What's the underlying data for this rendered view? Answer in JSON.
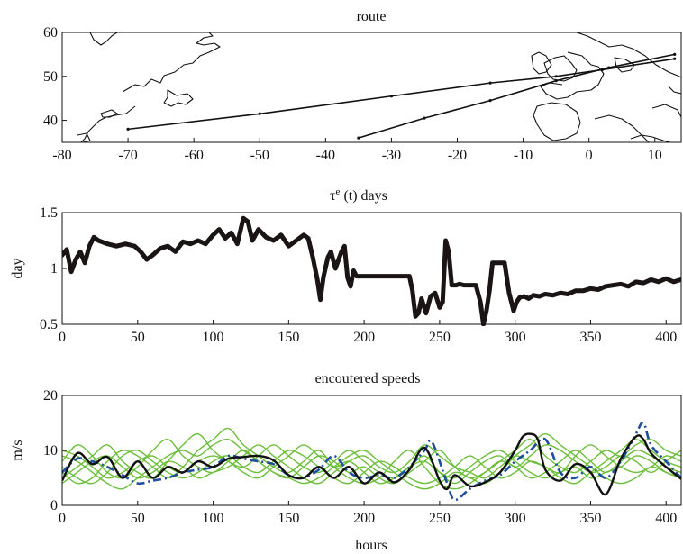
{
  "chart_data": [
    {
      "type": "line",
      "title": "route",
      "xlabel": "",
      "ylabel": "",
      "xlim": [
        -80,
        14
      ],
      "ylim": [
        35,
        60
      ],
      "xticks": [
        -80,
        -70,
        -60,
        -50,
        -40,
        -30,
        -20,
        -10,
        0,
        10
      ],
      "yticks": [
        40,
        50,
        60
      ],
      "grid": false,
      "series": [
        {
          "values": [
            [
              -70,
              38.0
            ],
            [
              -50,
              41.5
            ],
            [
              -30,
              45.5
            ],
            [
              -15,
              48.5
            ],
            [
              -5,
              50.0
            ],
            [
              2,
              51.5
            ],
            [
              13,
              54.0
            ]
          ]
        },
        {
          "values": [
            [
              -35,
              36.0
            ],
            [
              -25,
              40.5
            ],
            [
              -15,
              44.5
            ],
            [
              -5,
              49.0
            ],
            [
              3,
              52.0
            ],
            [
              13,
              55.0
            ]
          ]
        }
      ]
    },
    {
      "type": "line",
      "title": "τe (t) days",
      "title_base": "τ",
      "title_sup": "e",
      "title_rest": " (t) days",
      "xlabel": "",
      "ylabel": "day",
      "xlim": [
        0,
        410
      ],
      "ylim": [
        0.5,
        1.5
      ],
      "xticks": [
        0,
        50,
        100,
        150,
        200,
        250,
        300,
        350,
        400
      ],
      "yticks": [
        0.5,
        1,
        1.5
      ],
      "grid": false,
      "series": [
        {
          "x": [
            0,
            3,
            6,
            9,
            12,
            15,
            18,
            21,
            24,
            30,
            36,
            42,
            48,
            52,
            56,
            60,
            65,
            70,
            75,
            80,
            85,
            90,
            95,
            100,
            104,
            108,
            112,
            116,
            120,
            123,
            126,
            130,
            135,
            140,
            145,
            150,
            155,
            160,
            163,
            166,
            169,
            171,
            173,
            176,
            178,
            181,
            185,
            187,
            189,
            191,
            193,
            195,
            200,
            210,
            220,
            230,
            232,
            234,
            236,
            238,
            241,
            244,
            247,
            250,
            252,
            254,
            256,
            258,
            261,
            263,
            266,
            270,
            274,
            277,
            279,
            281,
            283,
            285,
            287,
            289,
            291,
            293,
            296,
            299,
            301,
            303,
            306,
            309,
            312,
            316,
            320,
            325,
            330,
            335,
            340,
            345,
            350,
            355,
            360,
            365,
            370,
            375,
            380,
            385,
            390,
            395,
            400,
            405,
            410
          ],
          "values": [
            1.12,
            1.17,
            0.97,
            1.08,
            1.15,
            1.05,
            1.2,
            1.28,
            1.25,
            1.22,
            1.2,
            1.22,
            1.2,
            1.15,
            1.08,
            1.12,
            1.18,
            1.2,
            1.15,
            1.24,
            1.22,
            1.25,
            1.22,
            1.3,
            1.35,
            1.27,
            1.32,
            1.22,
            1.45,
            1.42,
            1.25,
            1.35,
            1.28,
            1.25,
            1.3,
            1.2,
            1.25,
            1.3,
            1.27,
            1.1,
            0.9,
            0.72,
            0.92,
            1.1,
            1.15,
            1.0,
            1.15,
            1.2,
            0.92,
            0.84,
            0.98,
            0.93,
            0.93,
            0.93,
            0.93,
            0.93,
            0.8,
            0.57,
            0.6,
            0.73,
            0.6,
            0.75,
            0.78,
            0.65,
            0.7,
            1.25,
            1.15,
            0.85,
            0.85,
            0.86,
            0.85,
            0.85,
            0.85,
            0.7,
            0.5,
            0.62,
            0.8,
            1.05,
            1.05,
            1.05,
            1.05,
            1.05,
            0.78,
            0.62,
            0.7,
            0.74,
            0.75,
            0.73,
            0.76,
            0.75,
            0.77,
            0.76,
            0.78,
            0.77,
            0.8,
            0.8,
            0.82,
            0.81,
            0.84,
            0.85,
            0.86,
            0.84,
            0.88,
            0.87,
            0.9,
            0.88,
            0.91,
            0.88,
            0.9
          ]
        }
      ]
    },
    {
      "type": "line",
      "title": "encoutered speeds",
      "xlabel": "hours",
      "ylabel": "m/s",
      "xlim": [
        0,
        410
      ],
      "ylim": [
        0,
        20
      ],
      "xticks": [
        0,
        50,
        100,
        150,
        200,
        250,
        300,
        350,
        400
      ],
      "yticks": [
        0,
        10,
        20
      ],
      "grid": false,
      "series": [
        {
          "style": "solid-black",
          "x": [
            0,
            10,
            20,
            30,
            40,
            50,
            60,
            70,
            80,
            90,
            100,
            110,
            120,
            130,
            140,
            150,
            160,
            170,
            180,
            190,
            200,
            210,
            220,
            230,
            240,
            250,
            255,
            260,
            270,
            280,
            290,
            300,
            305,
            310,
            315,
            320,
            330,
            340,
            350,
            360,
            370,
            380,
            385,
            390,
            400,
            410
          ],
          "values": [
            4.5,
            9.5,
            7.5,
            8.8,
            5.0,
            8.0,
            5.0,
            7.0,
            6.0,
            8.0,
            7.0,
            8.5,
            8.8,
            9.0,
            8.2,
            5.5,
            5.0,
            7.0,
            5.0,
            7.0,
            4.0,
            6.0,
            4.2,
            6.5,
            10.5,
            4.5,
            3.0,
            5.5,
            3.5,
            4.2,
            6.0,
            10.0,
            12.5,
            13.0,
            12.0,
            6.5,
            4.5,
            7.5,
            6.0,
            2.0,
            8.5,
            12.5,
            12.0,
            9.5,
            7.0,
            4.8
          ]
        },
        {
          "style": "dashdot-blue",
          "x": [
            0,
            10,
            20,
            30,
            40,
            50,
            60,
            70,
            80,
            90,
            100,
            110,
            120,
            130,
            140,
            150,
            160,
            170,
            180,
            190,
            200,
            210,
            220,
            230,
            240,
            245,
            255,
            260,
            270,
            280,
            290,
            300,
            310,
            320,
            330,
            340,
            350,
            360,
            370,
            380,
            385,
            390,
            400,
            410
          ],
          "values": [
            6.0,
            8.5,
            8.0,
            7.0,
            5.5,
            4.0,
            4.5,
            5.0,
            6.0,
            6.5,
            7.0,
            9.0,
            8.5,
            8.0,
            7.5,
            5.5,
            5.0,
            6.5,
            9.0,
            6.0,
            5.0,
            5.5,
            5.0,
            7.0,
            10.0,
            11.5,
            4.0,
            1.0,
            3.0,
            4.5,
            5.5,
            8.0,
            10.0,
            12.0,
            6.0,
            5.0,
            7.0,
            5.0,
            8.0,
            13.0,
            15.0,
            11.0,
            8.0,
            5.0
          ]
        },
        {
          "style": "green",
          "x": [
            0,
            10,
            20,
            30,
            40,
            50,
            60,
            70,
            80,
            90,
            100,
            110,
            120,
            130,
            140,
            150,
            160,
            170,
            180,
            190,
            200,
            210,
            220,
            230,
            240,
            250,
            260,
            270,
            280,
            290,
            300,
            310,
            320,
            330,
            340,
            350,
            360,
            370,
            380,
            390,
            400,
            410
          ],
          "values": [
            8,
            11,
            9,
            6,
            5,
            7,
            10,
            12,
            9,
            7,
            6,
            8,
            10,
            8,
            6,
            5,
            7,
            9,
            8,
            6,
            7,
            5,
            4,
            6,
            8,
            10,
            7,
            5,
            6,
            8,
            10,
            12,
            9,
            7,
            6,
            8,
            10,
            9,
            11,
            12,
            10,
            9
          ]
        },
        {
          "style": "green",
          "x": [
            0,
            10,
            20,
            30,
            40,
            50,
            60,
            70,
            80,
            90,
            100,
            110,
            120,
            130,
            140,
            150,
            160,
            170,
            180,
            190,
            200,
            210,
            220,
            230,
            240,
            250,
            260,
            270,
            280,
            290,
            300,
            310,
            320,
            330,
            340,
            350,
            360,
            370,
            380,
            390,
            400,
            410
          ],
          "values": [
            5,
            7,
            9,
            11,
            8,
            6,
            5,
            8,
            11,
            13,
            10,
            8,
            7,
            9,
            11,
            9,
            7,
            6,
            8,
            10,
            8,
            6,
            5,
            7,
            9,
            6,
            4,
            6,
            8,
            9,
            7,
            9,
            11,
            10,
            8,
            6,
            7,
            9,
            8,
            6,
            8,
            10
          ]
        },
        {
          "style": "green",
          "x": [
            0,
            10,
            20,
            30,
            40,
            50,
            60,
            70,
            80,
            90,
            100,
            110,
            120,
            130,
            140,
            150,
            160,
            170,
            180,
            190,
            200,
            210,
            220,
            230,
            240,
            250,
            260,
            270,
            280,
            290,
            300,
            310,
            320,
            330,
            340,
            350,
            360,
            370,
            380,
            390,
            400,
            410
          ],
          "values": [
            7,
            5,
            4,
            6,
            9,
            10,
            8,
            6,
            5,
            6,
            8,
            9,
            7,
            6,
            8,
            10,
            9,
            7,
            5,
            4,
            6,
            8,
            7,
            5,
            4,
            5,
            7,
            9,
            7,
            5,
            6,
            8,
            7,
            6,
            9,
            11,
            9,
            7,
            6,
            7,
            9,
            8
          ]
        },
        {
          "style": "green",
          "x": [
            0,
            10,
            20,
            30,
            40,
            50,
            60,
            70,
            80,
            90,
            100,
            110,
            120,
            130,
            140,
            150,
            160,
            170,
            180,
            190,
            200,
            210,
            220,
            230,
            240,
            250,
            260,
            270,
            280,
            290,
            300,
            310,
            320,
            330,
            340,
            350,
            360,
            370,
            380,
            390,
            400,
            410
          ],
          "values": [
            9,
            8,
            6,
            4,
            3,
            5,
            7,
            9,
            10,
            9,
            11,
            12,
            10,
            8,
            6,
            5,
            4,
            5,
            7,
            9,
            10,
            8,
            6,
            4,
            3,
            4,
            6,
            5,
            4,
            6,
            9,
            11,
            13,
            11,
            9,
            7,
            5,
            4,
            5,
            7,
            6,
            5
          ]
        },
        {
          "style": "green",
          "x": [
            0,
            10,
            20,
            30,
            40,
            50,
            60,
            70,
            80,
            90,
            100,
            110,
            120,
            130,
            140,
            150,
            160,
            170,
            180,
            190,
            200,
            210,
            220,
            230,
            240,
            250,
            260,
            270,
            280,
            290,
            300,
            310,
            320,
            330,
            340,
            350,
            360,
            370,
            380,
            390,
            400,
            410
          ],
          "values": [
            6,
            4,
            5,
            8,
            10,
            9,
            7,
            5,
            7,
            10,
            12,
            14,
            11,
            9,
            7,
            6,
            8,
            10,
            7,
            5,
            4,
            5,
            8,
            10,
            7,
            4,
            3,
            4,
            6,
            8,
            7,
            5,
            6,
            8,
            10,
            8,
            6,
            8,
            10,
            9,
            7,
            6
          ]
        },
        {
          "style": "green",
          "x": [
            0,
            10,
            20,
            30,
            40,
            50,
            60,
            70,
            80,
            90,
            100,
            110,
            120,
            130,
            140,
            150,
            160,
            170,
            180,
            190,
            200,
            210,
            220,
            230,
            240,
            250,
            260,
            270,
            280,
            290,
            300,
            310,
            320,
            330,
            340,
            350,
            360,
            370,
            380,
            390,
            400,
            410
          ],
          "values": [
            4,
            6,
            8,
            9,
            7,
            5,
            6,
            8,
            7,
            5,
            6,
            7,
            9,
            11,
            9,
            7,
            5,
            4,
            6,
            8,
            9,
            7,
            6,
            8,
            11,
            9,
            7,
            6,
            5,
            7,
            9,
            8,
            7,
            5,
            4,
            6,
            8,
            10,
            12,
            10,
            8,
            7
          ]
        },
        {
          "style": "green",
          "x": [
            0,
            10,
            20,
            30,
            40,
            50,
            60,
            70,
            80,
            90,
            100,
            110,
            120,
            130,
            140,
            150,
            160,
            170,
            180,
            190,
            200,
            210,
            220,
            230,
            240,
            250,
            260,
            270,
            280,
            290,
            300,
            310,
            320,
            330,
            340,
            350,
            360,
            370,
            380,
            390,
            400,
            410
          ],
          "values": [
            10,
            9,
            7,
            5,
            6,
            8,
            9,
            7,
            6,
            8,
            9,
            8,
            6,
            5,
            7,
            9,
            11,
            9,
            7,
            8,
            6,
            4,
            5,
            7,
            8,
            6,
            5,
            7,
            9,
            10,
            8,
            6,
            5,
            6,
            7,
            5,
            6,
            7,
            9,
            8,
            6,
            5
          ]
        }
      ]
    }
  ],
  "colors": {
    "axis": "#111111",
    "tau_line": "#1a1414",
    "speed_black": "#111111",
    "speed_blue": "#1f4e9e",
    "speed_green": "#6cbf3a"
  }
}
